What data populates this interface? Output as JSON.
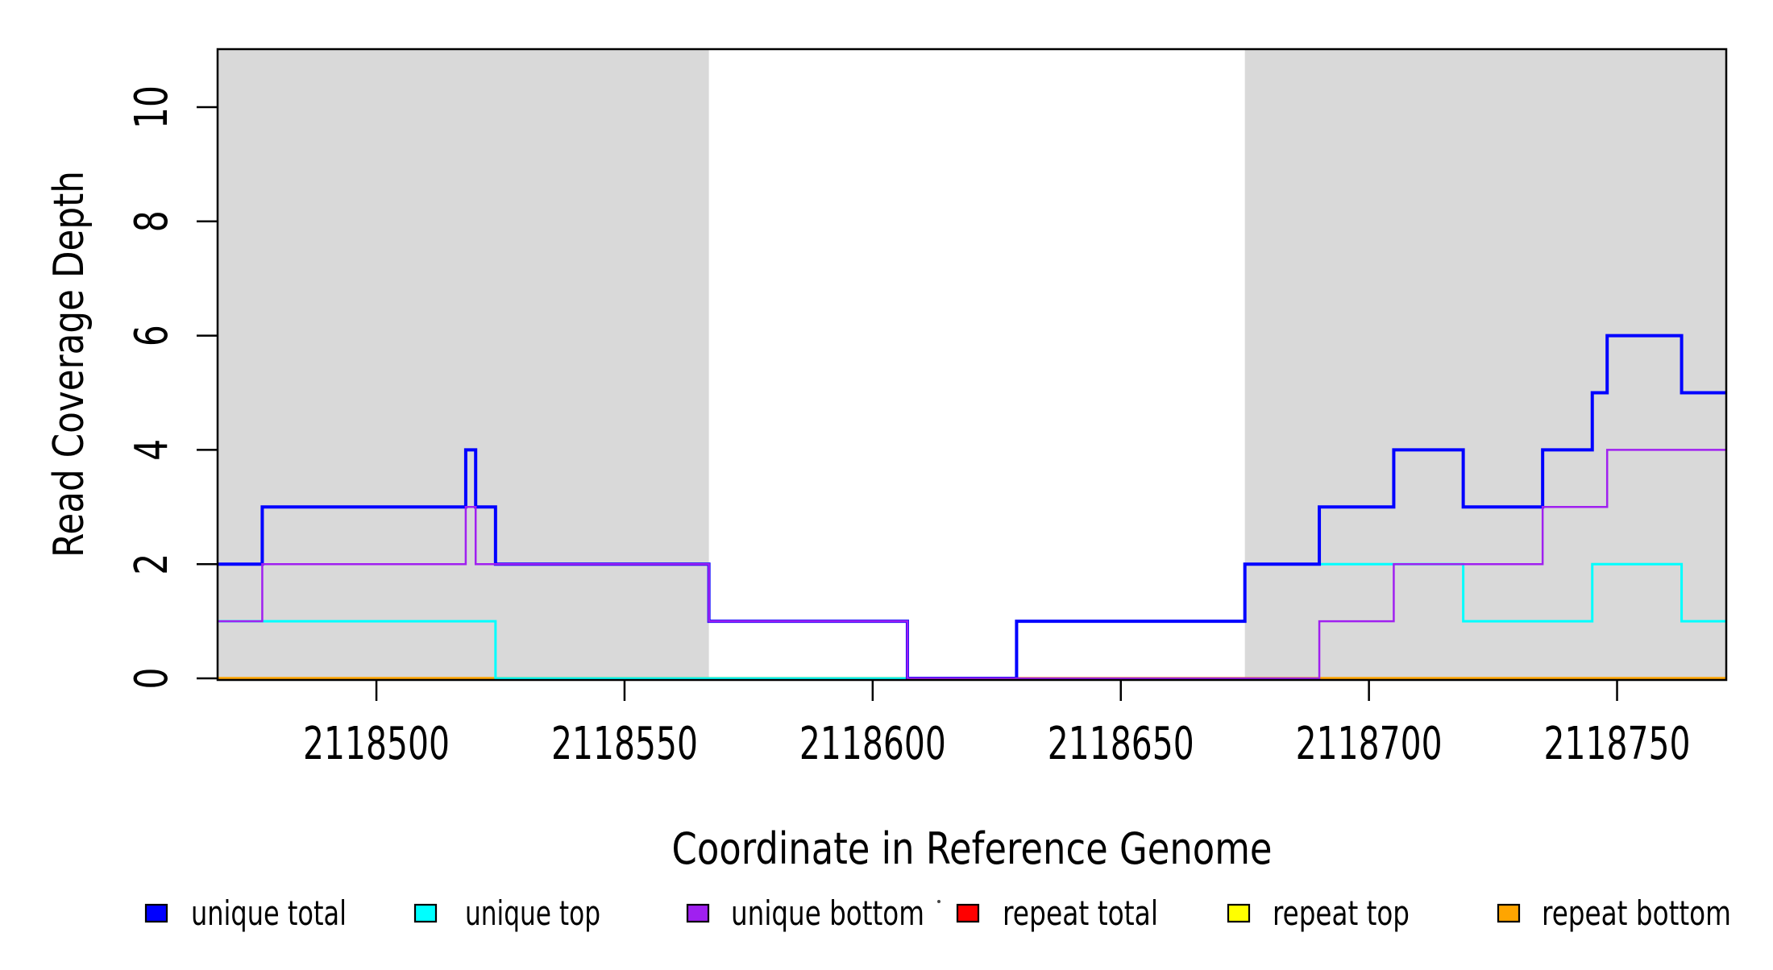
{
  "figure": {
    "background": "#ffffff",
    "plot_bg": "#ffffff",
    "shade_color": "#d9d9d9",
    "border_color": "#000000"
  },
  "chart_data": {
    "type": "line",
    "subtype": "step-coverage-plot",
    "title": "",
    "xlabel": "Coordinate in Reference Genome",
    "ylabel": "Read Coverage Depth",
    "xlim": [
      2118468,
      2118772
    ],
    "ylim": [
      0,
      11
    ],
    "grid": false,
    "legend_position": "bottom",
    "x_ticks": [
      2118500,
      2118550,
      2118600,
      2118650,
      2118700,
      2118750
    ],
    "y_ticks": [
      0,
      2,
      4,
      6,
      8,
      10
    ],
    "shaded_regions": [
      {
        "start": 2118468,
        "end": 2118567
      },
      {
        "start": 2118675,
        "end": 2118772
      }
    ],
    "series": [
      {
        "name": "repeat total",
        "color": "#ff0000",
        "width": 2.5,
        "steps": [
          [
            2118468,
            0
          ]
        ]
      },
      {
        "name": "repeat top",
        "color": "#ffff00",
        "width": 2.5,
        "steps": [
          [
            2118468,
            0
          ]
        ]
      },
      {
        "name": "repeat bottom",
        "color": "#ffa500",
        "width": 3.5,
        "steps": [
          [
            2118468,
            0
          ]
        ]
      },
      {
        "name": "unique top",
        "color": "#00ffff",
        "width": 3,
        "steps": [
          [
            2118468,
            1
          ],
          [
            2118524,
            0
          ],
          [
            2118629,
            1
          ],
          [
            2118675,
            2
          ],
          [
            2118719,
            1
          ],
          [
            2118745,
            2
          ],
          [
            2118763,
            1
          ]
        ]
      },
      {
        "name": "unique total",
        "color": "#0000ff",
        "width": 4,
        "steps": [
          [
            2118468,
            2
          ],
          [
            2118477,
            3
          ],
          [
            2118518,
            4
          ],
          [
            2118520,
            3
          ],
          [
            2118524,
            2
          ],
          [
            2118567,
            1
          ],
          [
            2118607,
            0
          ],
          [
            2118629,
            1
          ],
          [
            2118675,
            2
          ],
          [
            2118690,
            3
          ],
          [
            2118705,
            4
          ],
          [
            2118719,
            3
          ],
          [
            2118735,
            4
          ],
          [
            2118745,
            5
          ],
          [
            2118748,
            6
          ],
          [
            2118763,
            5
          ]
        ]
      },
      {
        "name": "unique bottom",
        "color": "#a020f0",
        "width": 2.5,
        "steps": [
          [
            2118468,
            1
          ],
          [
            2118477,
            2
          ],
          [
            2118518,
            3
          ],
          [
            2118520,
            2
          ],
          [
            2118567,
            1
          ],
          [
            2118607,
            0
          ],
          [
            2118690,
            1
          ],
          [
            2118705,
            2
          ],
          [
            2118735,
            3
          ],
          [
            2118748,
            4
          ]
        ]
      }
    ],
    "legend_order": [
      "unique total",
      "unique top",
      "unique bottom",
      "repeat total",
      "repeat top",
      "repeat bottom"
    ]
  }
}
